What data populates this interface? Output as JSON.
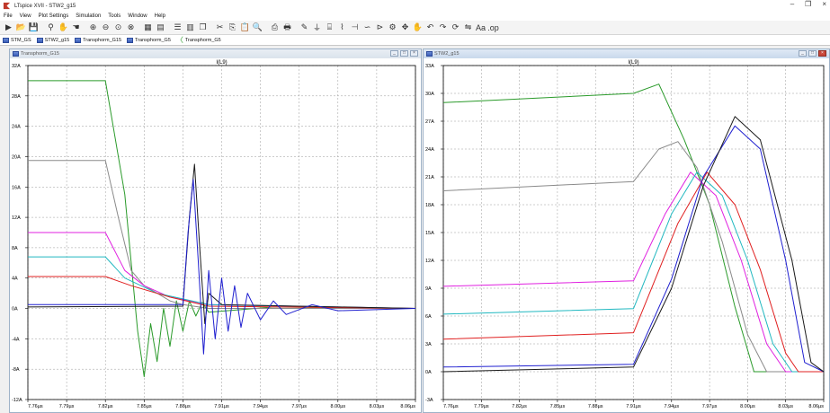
{
  "app": {
    "title": "LTspice XVII - STW2_g15",
    "window_controls": [
      "–",
      "❐",
      "×"
    ]
  },
  "menu": [
    "File",
    "View",
    "Plot Settings",
    "Simulation",
    "Tools",
    "Window",
    "Help"
  ],
  "toolbar_icons": [
    "run-icon",
    "open-icon",
    "save-icon",
    "probe-icon",
    "halt-icon",
    "pan-icon",
    "zoom-in-icon",
    "zoom-out-icon",
    "zoom-fit-icon",
    "zoom-cancel-icon",
    "autorange-icon",
    "measure-icon",
    "tile-horizontal-icon",
    "tile-vertical-icon",
    "cascade-icon",
    "cut-icon",
    "copy-icon",
    "paste-icon",
    "find-icon",
    "print-setup-icon",
    "print-icon",
    "wire-icon",
    "ground-icon",
    "label-icon",
    "resistor-icon",
    "capacitor-icon",
    "inductor-icon",
    "diode-icon",
    "component-icon",
    "move-icon",
    "drag-icon",
    "undo-icon",
    "redo-icon",
    "rotate-icon",
    "mirror-icon",
    "text-icon",
    "spice-directive-icon"
  ],
  "tabs": [
    {
      "label": "STM_GS",
      "icon": "schematic"
    },
    {
      "label": "STW2_g15",
      "icon": "schematic"
    },
    {
      "label": "Transphorm_G15",
      "icon": "schematic"
    },
    {
      "label": "Transphorm_G5",
      "icon": "schematic"
    },
    {
      "label": "Transphorm_G5",
      "icon": "waveform"
    }
  ],
  "windows": {
    "left": {
      "title": "Transphorm_G15",
      "buttons": [
        "_",
        "□",
        "×"
      ]
    },
    "right": {
      "title": "STW2_g15",
      "buttons": [
        "_",
        "□",
        "×"
      ]
    }
  },
  "chart_data": [
    {
      "type": "line",
      "title": "I(L9)",
      "xlabel": "",
      "ylabel": "",
      "x_ticks": [
        "7.76µs",
        "7.79µs",
        "7.82µs",
        "7.85µs",
        "7.88µs",
        "7.91µs",
        "7.94µs",
        "7.97µs",
        "8.00µs",
        "8.03µs",
        "8.06µs"
      ],
      "y_ticks": [
        "32A",
        "28A",
        "24A",
        "20A",
        "16A",
        "12A",
        "8A",
        "4A",
        "0A",
        "-4A",
        "-8A",
        "-12A"
      ],
      "xlim": [
        7.76,
        8.06
      ],
      "ylim": [
        -12,
        32
      ],
      "grid": true,
      "series": [
        {
          "color": "#2a9a2a",
          "points": [
            [
              7.76,
              30
            ],
            [
              7.8,
              30
            ],
            [
              7.82,
              30
            ],
            [
              7.835,
              15
            ],
            [
              7.84,
              6
            ],
            [
              7.845,
              -3
            ],
            [
              7.85,
              -9
            ],
            [
              7.855,
              -2
            ],
            [
              7.86,
              -7
            ],
            [
              7.865,
              0
            ],
            [
              7.87,
              -5
            ],
            [
              7.875,
              1
            ],
            [
              7.88,
              -3
            ],
            [
              7.885,
              1
            ],
            [
              7.89,
              -1
            ],
            [
              7.895,
              0.8
            ],
            [
              7.9,
              -0.5
            ],
            [
              7.95,
              0.2
            ],
            [
              8.06,
              0
            ]
          ]
        },
        {
          "color": "#8a8a8a",
          "points": [
            [
              7.76,
              19.5
            ],
            [
              7.82,
              19.5
            ],
            [
              7.83,
              12
            ],
            [
              7.84,
              5
            ],
            [
              7.85,
              3
            ],
            [
              7.86,
              2
            ],
            [
              7.87,
              1
            ],
            [
              7.88,
              0.5
            ],
            [
              7.9,
              0
            ],
            [
              8.06,
              0
            ]
          ]
        },
        {
          "color": "#e020e0",
          "points": [
            [
              7.76,
              10
            ],
            [
              7.82,
              10
            ],
            [
              7.835,
              5
            ],
            [
              7.85,
              3
            ],
            [
              7.87,
              1.5
            ],
            [
              7.9,
              0.5
            ],
            [
              8.06,
              0
            ]
          ]
        },
        {
          "color": "#20b8c0",
          "points": [
            [
              7.76,
              6.8
            ],
            [
              7.82,
              6.8
            ],
            [
              7.835,
              4
            ],
            [
              7.86,
              2
            ],
            [
              7.9,
              0.5
            ],
            [
              8.06,
              0
            ]
          ]
        },
        {
          "color": "#e02020",
          "points": [
            [
              7.76,
              4.2
            ],
            [
              7.82,
              4.2
            ],
            [
              7.84,
              3
            ],
            [
              7.87,
              1.5
            ],
            [
              7.9,
              0.3
            ],
            [
              8.06,
              0
            ]
          ]
        },
        {
          "color": "#1a1a1a",
          "points": [
            [
              7.76,
              0.2
            ],
            [
              7.88,
              0.3
            ],
            [
              7.885,
              12
            ],
            [
              7.889,
              19
            ],
            [
              7.893,
              8
            ],
            [
              7.897,
              -2
            ],
            [
              7.9,
              2
            ],
            [
              7.91,
              0.5
            ],
            [
              8.06,
              0
            ]
          ]
        },
        {
          "color": "#2020d0",
          "points": [
            [
              7.76,
              0.5
            ],
            [
              7.88,
              0.5
            ],
            [
              7.884,
              10
            ],
            [
              7.888,
              17
            ],
            [
              7.892,
              6
            ],
            [
              7.896,
              -6
            ],
            [
              7.9,
              5
            ],
            [
              7.905,
              -4
            ],
            [
              7.91,
              4
            ],
            [
              7.915,
              -3
            ],
            [
              7.92,
              3
            ],
            [
              7.925,
              -2.5
            ],
            [
              7.93,
              2
            ],
            [
              7.94,
              -1.5
            ],
            [
              7.95,
              1
            ],
            [
              7.96,
              -0.8
            ],
            [
              7.98,
              0.5
            ],
            [
              8.0,
              -0.3
            ],
            [
              8.06,
              0
            ]
          ]
        }
      ]
    },
    {
      "type": "line",
      "title": "I(L9)",
      "xlabel": "",
      "ylabel": "",
      "x_ticks": [
        "7.76µs",
        "7.79µs",
        "7.82µs",
        "7.85µs",
        "7.88µs",
        "7.91µs",
        "7.94µs",
        "7.97µs",
        "8.00µs",
        "8.03µs",
        "8.06µs"
      ],
      "y_ticks": [
        "33A",
        "30A",
        "27A",
        "24A",
        "21A",
        "18A",
        "15A",
        "12A",
        "9A",
        "6A",
        "3A",
        "0A",
        "-3A"
      ],
      "xlim": [
        7.76,
        8.06
      ],
      "ylim": [
        -3,
        33
      ],
      "grid": true,
      "series": [
        {
          "color": "#2a9a2a",
          "points": [
            [
              7.76,
              29
            ],
            [
              7.91,
              30
            ],
            [
              7.93,
              31
            ],
            [
              7.95,
              25
            ],
            [
              7.97,
              18
            ],
            [
              7.99,
              7
            ],
            [
              8.005,
              0
            ],
            [
              8.02,
              0
            ],
            [
              8.06,
              0
            ]
          ]
        },
        {
          "color": "#8a8a8a",
          "points": [
            [
              7.76,
              19.5
            ],
            [
              7.91,
              20.5
            ],
            [
              7.93,
              24
            ],
            [
              7.945,
              24.8
            ],
            [
              7.96,
              22
            ],
            [
              7.98,
              14
            ],
            [
              8.0,
              4
            ],
            [
              8.015,
              0
            ],
            [
              8.06,
              0
            ]
          ]
        },
        {
          "color": "#e020e0",
          "points": [
            [
              7.76,
              9.2
            ],
            [
              7.91,
              9.8
            ],
            [
              7.935,
              17
            ],
            [
              7.955,
              21.5
            ],
            [
              7.975,
              19
            ],
            [
              7.995,
              12
            ],
            [
              8.015,
              3
            ],
            [
              8.03,
              0
            ],
            [
              8.06,
              0
            ]
          ]
        },
        {
          "color": "#20b8c0",
          "points": [
            [
              7.76,
              6.2
            ],
            [
              7.91,
              6.8
            ],
            [
              7.94,
              17
            ],
            [
              7.96,
              21.5
            ],
            [
              7.98,
              19
            ],
            [
              8.0,
              12
            ],
            [
              8.02,
              3
            ],
            [
              8.035,
              0
            ],
            [
              8.06,
              0
            ]
          ]
        },
        {
          "color": "#e02020",
          "points": [
            [
              7.76,
              3.5
            ],
            [
              7.91,
              4.2
            ],
            [
              7.945,
              16
            ],
            [
              7.968,
              21.5
            ],
            [
              7.99,
              18
            ],
            [
              8.01,
              11
            ],
            [
              8.03,
              2
            ],
            [
              8.04,
              0
            ],
            [
              8.06,
              0
            ]
          ]
        },
        {
          "color": "#2020d0",
          "points": [
            [
              7.76,
              0.5
            ],
            [
              7.91,
              0.8
            ],
            [
              7.94,
              10
            ],
            [
              7.965,
              21
            ],
            [
              7.99,
              26.5
            ],
            [
              8.01,
              24
            ],
            [
              8.03,
              12
            ],
            [
              8.045,
              1
            ],
            [
              8.06,
              0
            ]
          ]
        },
        {
          "color": "#1a1a1a",
          "points": [
            [
              7.76,
              0
            ],
            [
              7.91,
              0.5
            ],
            [
              7.94,
              9
            ],
            [
              7.965,
              20
            ],
            [
              7.99,
              27.5
            ],
            [
              8.01,
              25
            ],
            [
              8.035,
              12
            ],
            [
              8.05,
              1
            ],
            [
              8.06,
              0
            ]
          ]
        }
      ]
    }
  ]
}
